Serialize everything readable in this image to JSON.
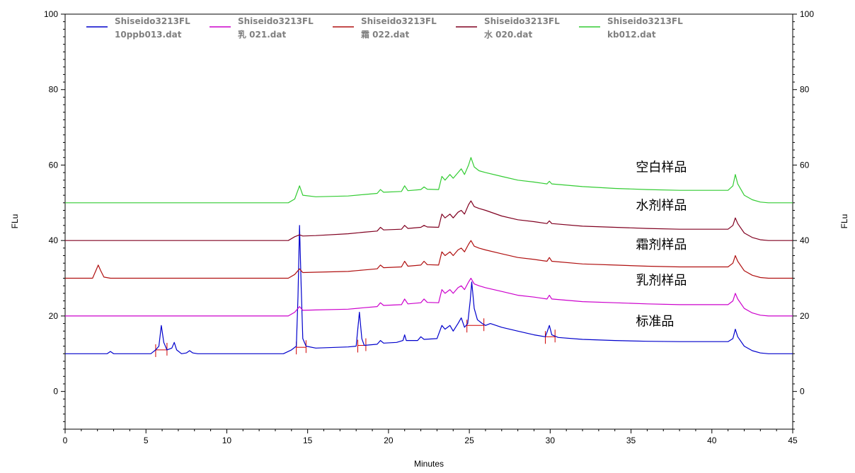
{
  "chart_data": {
    "type": "line",
    "xlabel": "Minutes",
    "ylabel": "FLu",
    "ylabel_right": "FLu",
    "xlim": [
      0,
      45
    ],
    "ylim": [
      -10,
      100
    ],
    "x_ticks": [
      0,
      5,
      10,
      15,
      20,
      25,
      30,
      35,
      40,
      45
    ],
    "y_ticks": [
      0,
      20,
      40,
      60,
      80,
      100
    ],
    "grid": false,
    "legend_position": "top",
    "series": [
      {
        "legend_line1": "Shiseido3213FL",
        "legend_line2": "10ppb013.dat",
        "color": "#0000cc",
        "points": [
          [
            0,
            10
          ],
          [
            2.6,
            10
          ],
          [
            2.8,
            10.6
          ],
          [
            3,
            10
          ],
          [
            5.3,
            10
          ],
          [
            5.6,
            11
          ],
          [
            5.8,
            12
          ],
          [
            5.95,
            17.5
          ],
          [
            6.1,
            13
          ],
          [
            6.3,
            11
          ],
          [
            6.6,
            11.5
          ],
          [
            6.75,
            13
          ],
          [
            6.9,
            11
          ],
          [
            7.2,
            10
          ],
          [
            7.5,
            10.2
          ],
          [
            7.7,
            10.8
          ],
          [
            7.9,
            10.2
          ],
          [
            8.2,
            10
          ],
          [
            13.5,
            10
          ],
          [
            14,
            11
          ],
          [
            14.3,
            12
          ],
          [
            14.4,
            25
          ],
          [
            14.5,
            44
          ],
          [
            14.6,
            28
          ],
          [
            14.7,
            14
          ],
          [
            14.9,
            12
          ],
          [
            15.5,
            11.5
          ],
          [
            17.5,
            11.8
          ],
          [
            18,
            12
          ],
          [
            18.2,
            21
          ],
          [
            18.35,
            14
          ],
          [
            18.5,
            12.2
          ],
          [
            19.3,
            12.5
          ],
          [
            19.5,
            13.5
          ],
          [
            19.7,
            12.8
          ],
          [
            20.5,
            13
          ],
          [
            20.9,
            13.5
          ],
          [
            21,
            15
          ],
          [
            21.1,
            13.5
          ],
          [
            21.8,
            13.5
          ],
          [
            22,
            14.5
          ],
          [
            22.2,
            13.8
          ],
          [
            23,
            14
          ],
          [
            23.3,
            17.5
          ],
          [
            23.5,
            16.5
          ],
          [
            23.8,
            17.5
          ],
          [
            24,
            16
          ],
          [
            24.3,
            18
          ],
          [
            24.5,
            19.5
          ],
          [
            24.7,
            17
          ],
          [
            24.9,
            18
          ],
          [
            25.05,
            24
          ],
          [
            25.15,
            29
          ],
          [
            25.3,
            22
          ],
          [
            25.5,
            19
          ],
          [
            25.8,
            18
          ],
          [
            26,
            17.5
          ],
          [
            26.3,
            18
          ],
          [
            27,
            17
          ],
          [
            28,
            16
          ],
          [
            29,
            15
          ],
          [
            29.7,
            14.5
          ],
          [
            29.95,
            17.5
          ],
          [
            30.1,
            15
          ],
          [
            30.5,
            14.3
          ],
          [
            32,
            13.8
          ],
          [
            34,
            13.5
          ],
          [
            36,
            13.3
          ],
          [
            38,
            13.2
          ],
          [
            41,
            13.2
          ],
          [
            41.3,
            14
          ],
          [
            41.45,
            16.5
          ],
          [
            41.6,
            14.5
          ],
          [
            42,
            12
          ],
          [
            42.5,
            10.8
          ],
          [
            43,
            10.2
          ],
          [
            43.5,
            10
          ],
          [
            45,
            10
          ]
        ]
      },
      {
        "legend_line1": "Shiseido3213FL",
        "legend_line2": "乳 021.dat",
        "color": "#cc00cc",
        "points": [
          [
            0,
            20
          ],
          [
            13.8,
            20
          ],
          [
            14.2,
            21
          ],
          [
            14.5,
            22.5
          ],
          [
            14.7,
            21.5
          ],
          [
            15.5,
            21.6
          ],
          [
            17.5,
            21.8
          ],
          [
            18.5,
            22.2
          ],
          [
            19.3,
            22.5
          ],
          [
            19.5,
            23.5
          ],
          [
            19.7,
            22.8
          ],
          [
            20.8,
            23
          ],
          [
            21,
            24.5
          ],
          [
            21.2,
            23.2
          ],
          [
            22,
            23.5
          ],
          [
            22.2,
            24.5
          ],
          [
            22.4,
            23.6
          ],
          [
            23.1,
            23.5
          ],
          [
            23.3,
            27
          ],
          [
            23.5,
            26
          ],
          [
            23.8,
            27
          ],
          [
            24,
            26
          ],
          [
            24.3,
            27.5
          ],
          [
            24.5,
            28
          ],
          [
            24.7,
            27
          ],
          [
            24.95,
            29
          ],
          [
            25.1,
            30
          ],
          [
            25.3,
            28.5
          ],
          [
            25.6,
            28
          ],
          [
            26,
            27.5
          ],
          [
            27,
            26.5
          ],
          [
            28,
            25.5
          ],
          [
            29,
            25
          ],
          [
            29.8,
            24.5
          ],
          [
            29.95,
            25.5
          ],
          [
            30.1,
            24.5
          ],
          [
            32,
            23.8
          ],
          [
            34,
            23.5
          ],
          [
            36,
            23.2
          ],
          [
            38,
            23
          ],
          [
            41,
            23
          ],
          [
            41.3,
            24
          ],
          [
            41.45,
            26
          ],
          [
            41.6,
            24.5
          ],
          [
            42,
            22
          ],
          [
            42.5,
            20.8
          ],
          [
            43,
            20.2
          ],
          [
            43.5,
            20
          ],
          [
            45,
            20
          ]
        ]
      },
      {
        "legend_line1": "Shiseido3213FL",
        "legend_line2": "霜 022.dat",
        "color": "#b01010",
        "points": [
          [
            0,
            30
          ],
          [
            1.7,
            30
          ],
          [
            1.9,
            32
          ],
          [
            2.05,
            33.5
          ],
          [
            2.2,
            32
          ],
          [
            2.4,
            30.3
          ],
          [
            2.8,
            30
          ],
          [
            13.8,
            30
          ],
          [
            14.2,
            31
          ],
          [
            14.5,
            32.5
          ],
          [
            14.7,
            31.5
          ],
          [
            15.5,
            31.6
          ],
          [
            17.5,
            31.8
          ],
          [
            18.5,
            32.2
          ],
          [
            19.3,
            32.5
          ],
          [
            19.5,
            33.5
          ],
          [
            19.7,
            32.8
          ],
          [
            20.8,
            33
          ],
          [
            21,
            34.5
          ],
          [
            21.2,
            33.2
          ],
          [
            22,
            33.5
          ],
          [
            22.2,
            34.5
          ],
          [
            22.4,
            33.6
          ],
          [
            23.1,
            33.5
          ],
          [
            23.3,
            37
          ],
          [
            23.5,
            36
          ],
          [
            23.8,
            37
          ],
          [
            24,
            36
          ],
          [
            24.3,
            37.5
          ],
          [
            24.5,
            38
          ],
          [
            24.7,
            37
          ],
          [
            24.95,
            39
          ],
          [
            25.1,
            40
          ],
          [
            25.3,
            38.5
          ],
          [
            25.6,
            38
          ],
          [
            26,
            37.5
          ],
          [
            27,
            36.5
          ],
          [
            28,
            35.5
          ],
          [
            29,
            35
          ],
          [
            29.8,
            34.5
          ],
          [
            29.95,
            35.5
          ],
          [
            30.1,
            34.5
          ],
          [
            32,
            33.8
          ],
          [
            34,
            33.5
          ],
          [
            36,
            33.2
          ],
          [
            38,
            33
          ],
          [
            41,
            33
          ],
          [
            41.3,
            34
          ],
          [
            41.45,
            36
          ],
          [
            41.6,
            34.5
          ],
          [
            42,
            32
          ],
          [
            42.5,
            30.8
          ],
          [
            43,
            30.2
          ],
          [
            43.5,
            30
          ],
          [
            45,
            30
          ]
        ]
      },
      {
        "legend_line1": "Shiseido3213FL",
        "legend_line2": "水 020.dat",
        "color": "#800020",
        "points": [
          [
            0,
            40
          ],
          [
            13.8,
            40
          ],
          [
            14.2,
            41
          ],
          [
            14.5,
            41.5
          ],
          [
            14.7,
            41.2
          ],
          [
            15.5,
            41.3
          ],
          [
            17.5,
            41.8
          ],
          [
            18.5,
            42.2
          ],
          [
            19.3,
            42.5
          ],
          [
            19.5,
            43.5
          ],
          [
            19.7,
            42.8
          ],
          [
            20.8,
            43
          ],
          [
            21,
            44
          ],
          [
            21.2,
            43.2
          ],
          [
            22,
            43.5
          ],
          [
            22.2,
            44
          ],
          [
            22.4,
            43.6
          ],
          [
            23.1,
            43.5
          ],
          [
            23.3,
            47
          ],
          [
            23.5,
            46
          ],
          [
            23.8,
            47
          ],
          [
            24,
            46
          ],
          [
            24.3,
            47.5
          ],
          [
            24.5,
            48
          ],
          [
            24.7,
            47
          ],
          [
            24.95,
            49.5
          ],
          [
            25.1,
            50.5
          ],
          [
            25.3,
            49
          ],
          [
            25.6,
            48.5
          ],
          [
            26,
            48
          ],
          [
            27,
            46.5
          ],
          [
            28,
            45.5
          ],
          [
            29,
            45
          ],
          [
            29.8,
            44.5
          ],
          [
            29.95,
            45.2
          ],
          [
            30.1,
            44.5
          ],
          [
            32,
            43.8
          ],
          [
            34,
            43.5
          ],
          [
            36,
            43.2
          ],
          [
            38,
            43
          ],
          [
            41,
            43
          ],
          [
            41.3,
            44
          ],
          [
            41.45,
            46
          ],
          [
            41.6,
            44.5
          ],
          [
            42,
            42
          ],
          [
            42.5,
            40.8
          ],
          [
            43,
            40.2
          ],
          [
            43.5,
            40
          ],
          [
            45,
            40
          ]
        ]
      },
      {
        "legend_line1": "Shiseido3213FL",
        "legend_line2": "kb012.dat",
        "color": "#33cc33",
        "points": [
          [
            0,
            50
          ],
          [
            13.8,
            50
          ],
          [
            14.2,
            51
          ],
          [
            14.5,
            54.5
          ],
          [
            14.7,
            52
          ],
          [
            15.5,
            51.6
          ],
          [
            17.5,
            51.8
          ],
          [
            18.5,
            52.2
          ],
          [
            19.3,
            52.5
          ],
          [
            19.5,
            53.5
          ],
          [
            19.7,
            52.8
          ],
          [
            20.8,
            53
          ],
          [
            21,
            54.5
          ],
          [
            21.2,
            53.2
          ],
          [
            22,
            53.5
          ],
          [
            22.2,
            54.2
          ],
          [
            22.4,
            53.6
          ],
          [
            23.1,
            53.5
          ],
          [
            23.3,
            57
          ],
          [
            23.5,
            56
          ],
          [
            23.8,
            57.5
          ],
          [
            24,
            56.5
          ],
          [
            24.3,
            58
          ],
          [
            24.5,
            59
          ],
          [
            24.7,
            57.5
          ],
          [
            24.95,
            60
          ],
          [
            25.1,
            62
          ],
          [
            25.3,
            59.5
          ],
          [
            25.6,
            58.5
          ],
          [
            26,
            58
          ],
          [
            27,
            57
          ],
          [
            28,
            56
          ],
          [
            29,
            55.5
          ],
          [
            29.8,
            55
          ],
          [
            29.95,
            55.7
          ],
          [
            30.1,
            55
          ],
          [
            32,
            54.3
          ],
          [
            34,
            53.8
          ],
          [
            36,
            53.5
          ],
          [
            38,
            53.3
          ],
          [
            41,
            53.3
          ],
          [
            41.3,
            54.5
          ],
          [
            41.45,
            57.5
          ],
          [
            41.6,
            55
          ],
          [
            42,
            52
          ],
          [
            42.5,
            50.8
          ],
          [
            43,
            50.2
          ],
          [
            43.5,
            50
          ],
          [
            45,
            50
          ]
        ]
      }
    ],
    "annotations": [
      {
        "text": "空白样品",
        "x": 35.3,
        "y": 58.3
      },
      {
        "text": "水剂样品",
        "x": 35.3,
        "y": 48.2
      },
      {
        "text": "霜剂样品",
        "x": 35.3,
        "y": 37.8
      },
      {
        "text": "乳剂样品",
        "x": 35.3,
        "y": 28.3
      },
      {
        "text": "标准品",
        "x": 35.3,
        "y": 17.5
      }
    ],
    "integration_markers": [
      {
        "x1": 5.6,
        "x2": 6.3,
        "y1": 11,
        "y2": 11
      },
      {
        "x1": 14.3,
        "x2": 14.9,
        "y1": 11.7,
        "y2": 11.7
      },
      {
        "x1": 18.1,
        "x2": 18.6,
        "y1": 12.2,
        "y2": 12.2
      },
      {
        "x1": 24.85,
        "x2": 25.9,
        "y1": 17.5,
        "y2": 17.5
      },
      {
        "x1": 29.7,
        "x2": 30.3,
        "y1": 14.5,
        "y2": 14.5
      }
    ]
  }
}
